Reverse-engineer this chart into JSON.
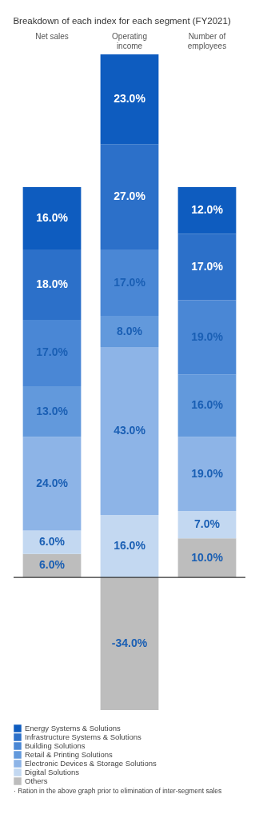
{
  "chart_data": {
    "type": "bar",
    "stacked": true,
    "title": "Breakdown of each index for each segment (FY2021)",
    "categories": [
      "Net sales",
      "Operating income",
      "Number of employees"
    ],
    "ylim": [
      -34,
      134
    ],
    "tick_labels": "x",
    "legend": "bottom left",
    "grid": false,
    "series": [
      {
        "name": "Others",
        "color": "#bdbdbd",
        "values": [
          6,
          -34,
          10
        ],
        "value_labels": [
          "6.0%",
          "-34.0%",
          "10.0%"
        ]
      },
      {
        "name": "Digital Solutions",
        "color": "#c3d8f1",
        "values": [
          6,
          16,
          7
        ],
        "value_labels": [
          "6.0%",
          "16.0%",
          "7.0%"
        ]
      },
      {
        "name": "Electronic Devices & Storage Solutions",
        "color": "#8db4e7",
        "values": [
          24,
          43,
          19
        ],
        "value_labels": [
          "24.0%",
          "43.0%",
          "19.0%"
        ]
      },
      {
        "name": "Retail & Printing Solutions",
        "color": "#6299dc",
        "values": [
          13,
          8,
          16
        ],
        "value_labels": [
          "13.0%",
          "8.0%",
          "16.0%"
        ]
      },
      {
        "name": "Building Solutions",
        "color": "#4a87d5",
        "values": [
          17,
          17,
          19
        ],
        "value_labels": [
          "17.0%",
          "17.0%",
          "19.0%"
        ]
      },
      {
        "name": "Infrastructure Systems & Solutions",
        "color": "#2c70c9",
        "values": [
          18,
          27,
          17
        ],
        "value_labels": [
          "18.0%",
          "27.0%",
          "17.0%"
        ]
      },
      {
        "name": "Energy Systems & Solutions",
        "color": "#0e5cbf",
        "values": [
          16,
          23,
          12
        ],
        "value_labels": [
          "16.0%",
          "23.0%",
          "12.0%"
        ]
      }
    ],
    "annotations": [
      "· Ration in the above graph prior to elimination of inter-segment sales"
    ]
  }
}
